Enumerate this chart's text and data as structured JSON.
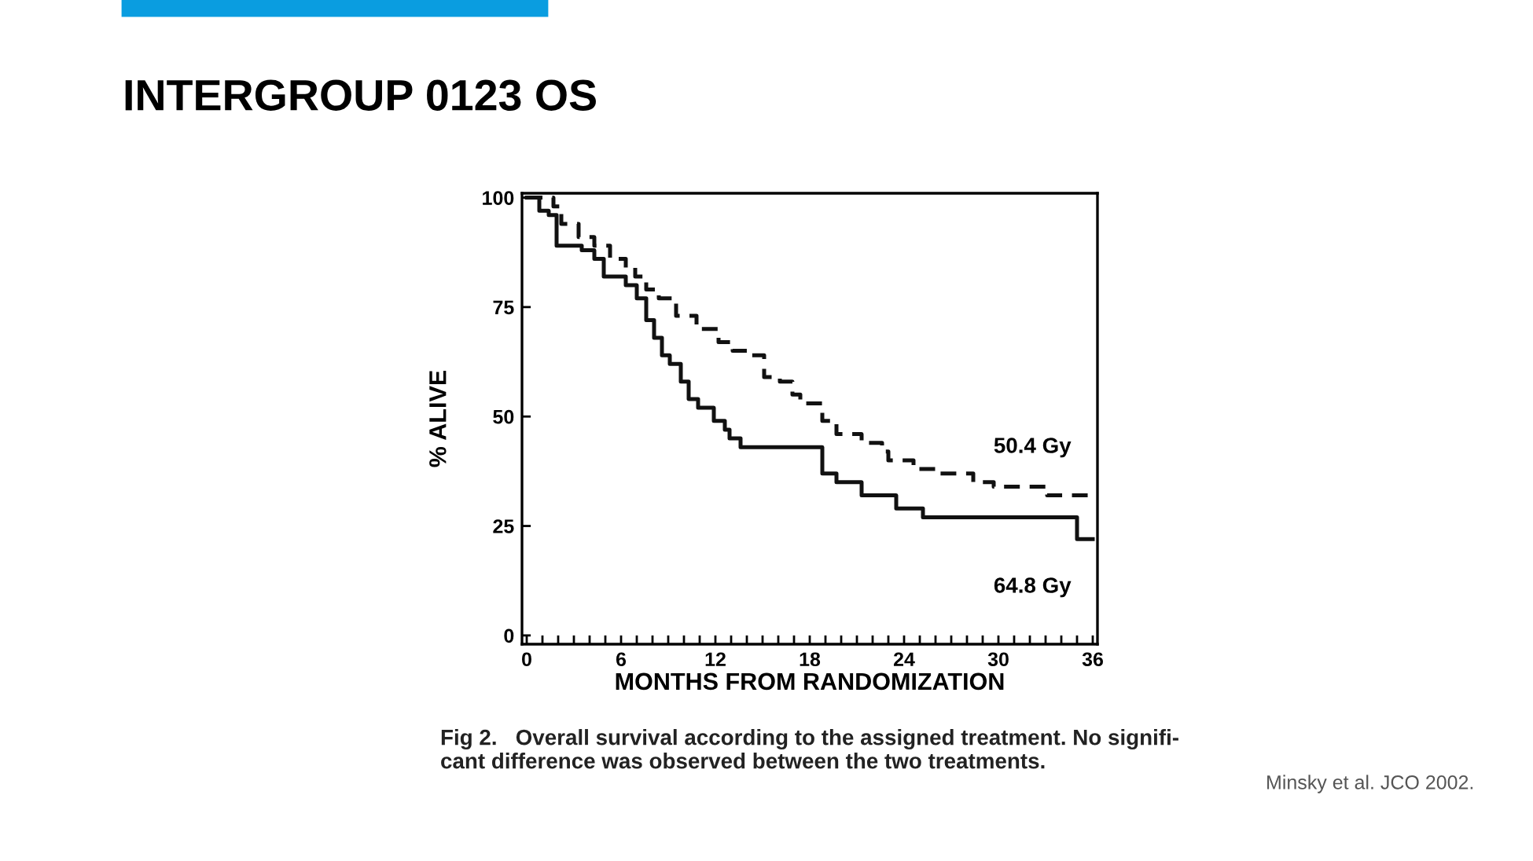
{
  "chart_data": {
    "type": "step",
    "title": "INTERGROUP 0123 OS",
    "xlabel": "MONTHS FROM RANDOMIZATION",
    "ylabel": "% ALIVE",
    "xlim": [
      -0.3,
      36.3
    ],
    "ylim": [
      -2,
      101
    ],
    "xticks": [
      0,
      {
        "value": 1,
        "label": null
      },
      {
        "value": 2,
        "label": null
      },
      {
        "value": 3,
        "label": null
      },
      {
        "value": 4,
        "label": null
      },
      {
        "value": 5,
        "label": null
      },
      6,
      {
        "value": 7,
        "label": null
      },
      {
        "value": 8,
        "label": null
      },
      {
        "value": 9,
        "label": null
      },
      {
        "value": 10,
        "label": null
      },
      {
        "value": 11,
        "label": null
      },
      12,
      {
        "value": 13,
        "label": null
      },
      {
        "value": 14,
        "label": null
      },
      {
        "value": 15,
        "label": null
      },
      {
        "value": 16,
        "label": null
      },
      {
        "value": 17,
        "label": null
      },
      18,
      {
        "value": 19,
        "label": null
      },
      {
        "value": 20,
        "label": null
      },
      {
        "value": 21,
        "label": null
      },
      {
        "value": 22,
        "label": null
      },
      {
        "value": 23,
        "label": null
      },
      24,
      {
        "value": 25,
        "label": null
      },
      {
        "value": 26,
        "label": null
      },
      {
        "value": 27,
        "label": null
      },
      {
        "value": 28,
        "label": null
      },
      {
        "value": 29,
        "label": null
      },
      30,
      {
        "value": 31,
        "label": null
      },
      {
        "value": 32,
        "label": null
      },
      {
        "value": 33,
        "label": null
      },
      {
        "value": 34,
        "label": null
      },
      {
        "value": 35,
        "label": null
      },
      36
    ],
    "yticks": [
      0,
      25,
      50,
      75,
      100
    ],
    "grid": false,
    "legend": false,
    "marker": "none",
    "series": [
      {
        "name": "50.4 Gy",
        "color": "#111111",
        "line_style": "dashed",
        "x": [
          0,
          1.1,
          1.7,
          2.2,
          3.3,
          4.3,
          5.3,
          6.3,
          6.9,
          7.6,
          8.4,
          9.5,
          10.8,
          12.2,
          13.1,
          14.1,
          15.1,
          16.1,
          16.9,
          17.4,
          18.8,
          19.7,
          21.3,
          22.6,
          23,
          24.6,
          26.2,
          28.4,
          29.7,
          32.3,
          33.1,
          36
        ],
        "values": [
          100,
          100,
          98,
          94,
          91,
          89,
          86,
          84,
          82,
          79,
          77,
          73,
          70,
          67,
          65,
          64,
          59,
          58,
          55,
          53,
          49,
          46,
          44,
          42,
          40,
          38,
          37,
          35,
          34,
          34,
          32,
          32
        ]
      },
      {
        "name": "64.8 Gy",
        "color": "#111111",
        "line_style": "solid",
        "x": [
          0,
          0.8,
          1.4,
          1.9,
          3.5,
          4.3,
          4.9,
          6.3,
          7,
          7.6,
          8.1,
          8.6,
          9.1,
          9.8,
          10.3,
          10.9,
          11.9,
          12.6,
          12.9,
          13.6,
          14.5,
          18.8,
          19.7,
          21.3,
          23.5,
          25.2,
          26.8,
          35,
          36
        ],
        "values": [
          100,
          97,
          96,
          89,
          88,
          86,
          82,
          80,
          77,
          72,
          68,
          64,
          62,
          58,
          54,
          52,
          49,
          47,
          45,
          43,
          43,
          37,
          35,
          32,
          29,
          27,
          27,
          22,
          22
        ]
      }
    ],
    "annotations": [
      "Fig 2.   Overall survival according to the assigned treatment. No signifi-\ncant difference was observed between the two treatments.",
      "Minsky et al. JCO 2002."
    ]
  }
}
